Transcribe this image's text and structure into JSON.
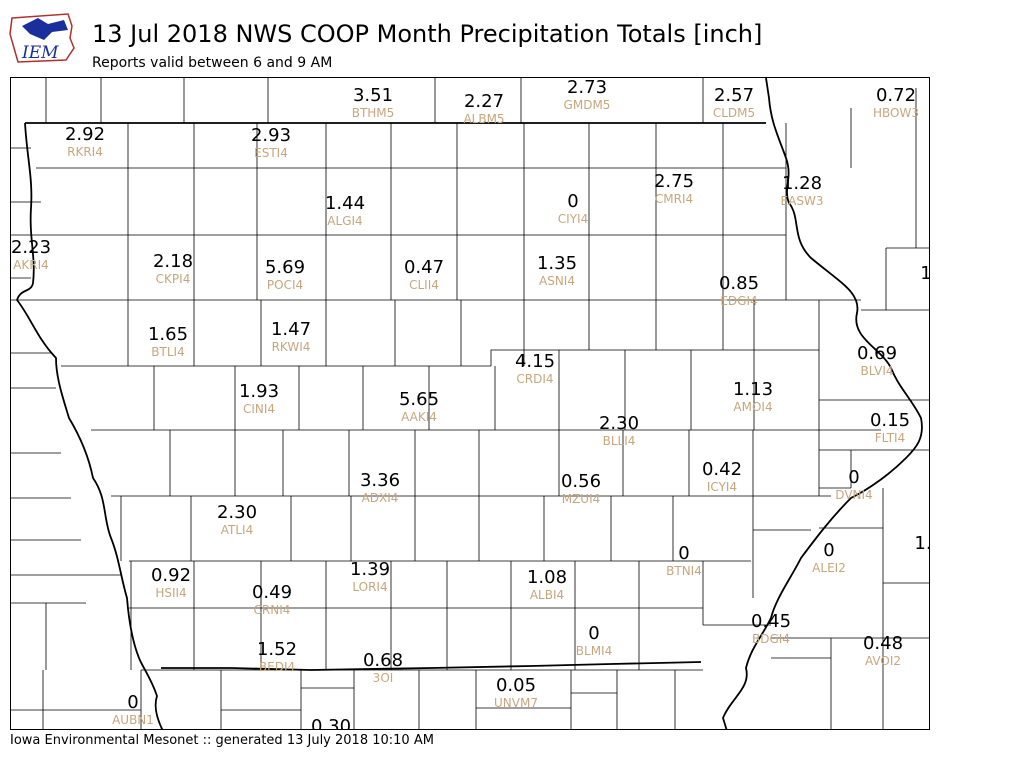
{
  "header": {
    "title": "13 Jul 2018 NWS COOP Month Precipitation Totals [inch]",
    "subtitle": "Reports valid between 6 and 9 AM",
    "logo_text": "IEM"
  },
  "footer": {
    "text": "Iowa Environmental Mesonet :: generated 13 July 2018 10:10 AM"
  },
  "colors": {
    "value": "#000000",
    "station_id": "#c8a67c",
    "logo_blue": "#1a2e9c",
    "logo_red": "#b03030"
  },
  "stations": [
    {
      "id": "BTHM5",
      "value": "3.51"
    },
    {
      "id": "ALBM5",
      "value": "2.27"
    },
    {
      "id": "GMDM5",
      "value": "2.73"
    },
    {
      "id": "CLDM5",
      "value": "2.57"
    },
    {
      "id": "HBOW3",
      "value": "0.72"
    },
    {
      "id": "RKRI4",
      "value": "2.92"
    },
    {
      "id": "ESTI4",
      "value": "2.93"
    },
    {
      "id": "ALGI4",
      "value": "1.44"
    },
    {
      "id": "CIYI4",
      "value": "0"
    },
    {
      "id": "CMRI4",
      "value": "2.75"
    },
    {
      "id": "EASW3",
      "value": "1.28"
    },
    {
      "id": "AKRI4",
      "value": "2.23"
    },
    {
      "id": "CKPI4",
      "value": "2.18"
    },
    {
      "id": "POCI4",
      "value": "5.69"
    },
    {
      "id": "CLII4",
      "value": "0.47"
    },
    {
      "id": "ASNI4",
      "value": "1.35"
    },
    {
      "id": "EDGI4",
      "value": "0.85"
    },
    {
      "id": "BTLI4",
      "value": "1.65"
    },
    {
      "id": "RKWI4",
      "value": "1.47"
    },
    {
      "id": "CRDI4",
      "value": "4.15"
    },
    {
      "id": "BLVI4",
      "value": "0.69"
    },
    {
      "id": "CINI4",
      "value": "1.93"
    },
    {
      "id": "AAKI4",
      "value": "5.65"
    },
    {
      "id": "AMOI4",
      "value": "1.13"
    },
    {
      "id": "BLLI4",
      "value": "2.30"
    },
    {
      "id": "FLTI4",
      "value": "0.15"
    },
    {
      "id": "ICYI4",
      "value": "0.42"
    },
    {
      "id": "ADXI4",
      "value": "3.36"
    },
    {
      "id": "MZUI4",
      "value": "0.56"
    },
    {
      "id": "DVNI4",
      "value": "0"
    },
    {
      "id": "ATLI4",
      "value": "2.30"
    },
    {
      "id": "BTNI4",
      "value": "0"
    },
    {
      "id": "ALEI2",
      "value": "0"
    },
    {
      "id": "HSII4",
      "value": "0.92"
    },
    {
      "id": "CRNI4",
      "value": "0.49"
    },
    {
      "id": "LORI4",
      "value": "1.39"
    },
    {
      "id": "ALBI4",
      "value": "1.08"
    },
    {
      "id": "BLMI4",
      "value": "0"
    },
    {
      "id": "BDGI4",
      "value": "0.45"
    },
    {
      "id": "AVOI2",
      "value": "0.48"
    },
    {
      "id": "BEDI4",
      "value": "1.52"
    },
    {
      "id": "3OI",
      "value": "0.68"
    },
    {
      "id": "UNVM7",
      "value": "0.05"
    },
    {
      "id": "AUBN1",
      "value": "0"
    },
    {
      "id": "",
      "value": "0.30"
    },
    {
      "id": "",
      "value": "1"
    },
    {
      "id": "",
      "value": "1."
    }
  ]
}
